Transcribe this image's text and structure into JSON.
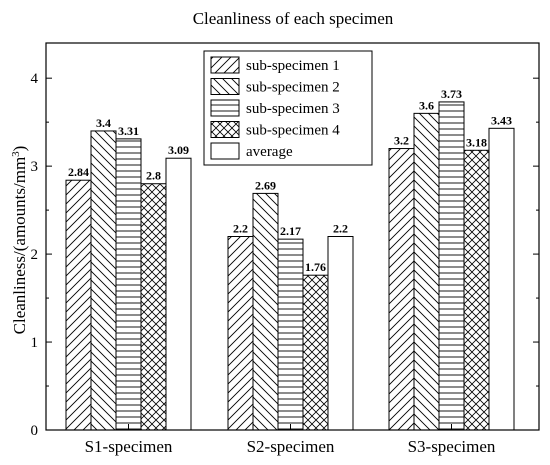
{
  "chart_data": {
    "type": "bar",
    "title": "Cleanliness of each specimen",
    "xlabel": "",
    "ylabel": {
      "prefix": "Cleanliness/(amounts/mm",
      "sup": "3",
      "suffix": ")"
    },
    "ylim": [
      0,
      4.4
    ],
    "yticks": [
      "0",
      "1",
      "2",
      "3",
      "4"
    ],
    "grid": false,
    "legend_position": "top-center",
    "categories": [
      "S1-specimen",
      "S2-specimen",
      "S3-specimen"
    ],
    "series": [
      {
        "name": "sub-specimen 1",
        "pattern": "diag-up",
        "values": [
          2.84,
          2.2,
          3.2
        ],
        "labels": [
          "2.84",
          "2.2",
          "3.2"
        ]
      },
      {
        "name": "sub-specimen 2",
        "pattern": "diag-down",
        "values": [
          3.4,
          2.69,
          3.6
        ],
        "labels": [
          "3.4",
          "2.69",
          "3.6"
        ]
      },
      {
        "name": "sub-specimen 3",
        "pattern": "horizontal",
        "values": [
          3.31,
          2.17,
          3.73
        ],
        "labels": [
          "3.31",
          "2.17",
          "3.73"
        ]
      },
      {
        "name": "sub-specimen 4",
        "pattern": "crosshatch",
        "values": [
          2.8,
          1.76,
          3.18
        ],
        "labels": [
          "2.8",
          "1.76",
          "3.18"
        ]
      },
      {
        "name": "average",
        "pattern": "none",
        "values": [
          3.09,
          2.2,
          3.43
        ],
        "labels": [
          "3.09",
          "2.2",
          "3.43"
        ]
      }
    ],
    "colors": {
      "stroke": "#000000",
      "fill": "#ffffff"
    }
  }
}
